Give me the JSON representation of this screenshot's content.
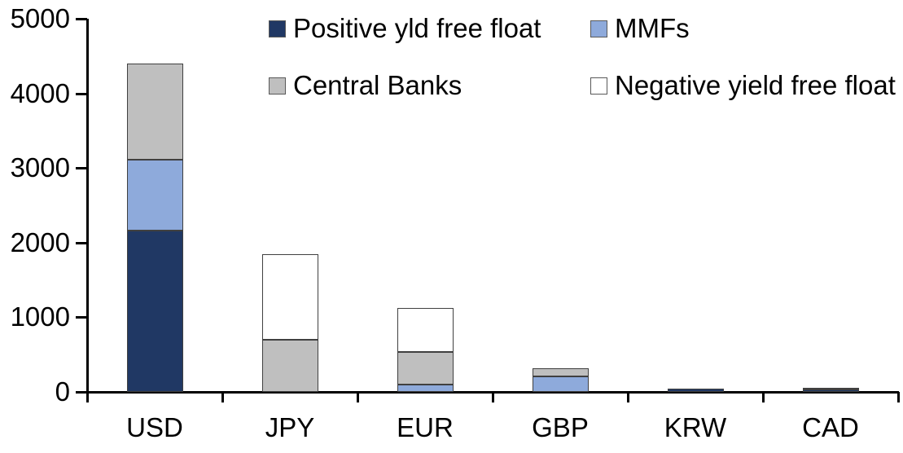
{
  "chart_data": {
    "type": "bar",
    "stacked": true,
    "title": "",
    "xlabel": "",
    "ylabel": "",
    "categories": [
      "USD",
      "JPY",
      "EUR",
      "GBP",
      "KRW",
      "CAD"
    ],
    "series": [
      {
        "name": "Positive yld free float",
        "color": "#203864",
        "values": [
          2160,
          0,
          0,
          0,
          45,
          30
        ]
      },
      {
        "name": "MMFs",
        "color": "#8eaadb",
        "values": [
          950,
          0,
          100,
          210,
          0,
          0
        ]
      },
      {
        "name": "Central Banks",
        "color": "#bfbfbf",
        "values": [
          1290,
          700,
          440,
          110,
          0,
          25
        ]
      },
      {
        "name": "Negative yield free float",
        "color": "#ffffff",
        "values": [
          0,
          1150,
          580,
          0,
          0,
          0
        ]
      }
    ],
    "ylim": [
      0,
      5000
    ],
    "y_ticks": [
      0,
      1000,
      2000,
      3000,
      4000,
      5000
    ],
    "grid": false,
    "legend_position": "top",
    "legend": [
      {
        "label": "Positive yld free float",
        "color": "#203864"
      },
      {
        "label": "MMFs",
        "color": "#8eaadb"
      },
      {
        "label": "Central Banks",
        "color": "#bfbfbf"
      },
      {
        "label": "Negative yield free float",
        "color": "#ffffff"
      }
    ]
  },
  "colors": {
    "axis": "#000000",
    "text": "#000000",
    "segment_border": "#404040",
    "background": "#ffffff"
  }
}
